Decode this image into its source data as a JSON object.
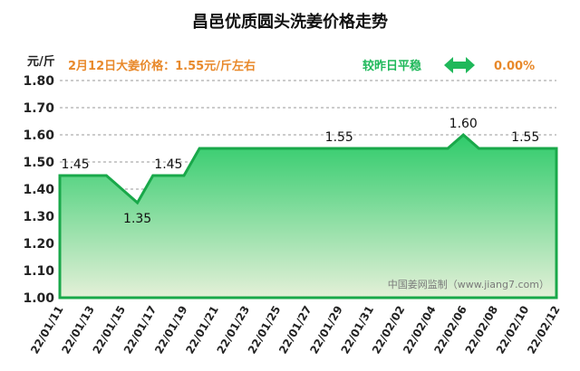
{
  "header": {
    "title": "昌邑优质圆头洗姜价格走势",
    "unit": "元/斤",
    "price_text": "2月12日大姜价格：1.55元/斤左右",
    "compare_text": "较昨日平稳",
    "change": "0.00%",
    "price_color": "#e8892b",
    "arrow_color": "#1fb85a"
  },
  "watermark": "中国姜网监制（www.jiang7.com）",
  "chart_data": {
    "type": "area",
    "x": [
      "2022-01-11",
      "2022-01-12",
      "2022-01-13",
      "2022-01-14",
      "2022-01-15",
      "2022-01-16",
      "2022-01-17",
      "2022-01-18",
      "2022-01-19",
      "2022-01-20",
      "2022-01-21",
      "2022-01-22",
      "2022-01-23",
      "2022-01-24",
      "2022-01-25",
      "2022-01-26",
      "2022-01-27",
      "2022-01-28",
      "2022-01-29",
      "2022-01-30",
      "2022-01-31",
      "2022-02-01",
      "2022-02-02",
      "2022-02-03",
      "2022-02-04",
      "2022-02-05",
      "2022-02-06",
      "2022-02-07",
      "2022-02-08",
      "2022-02-09",
      "2022-02-10",
      "2022-02-11",
      "2022-02-12"
    ],
    "values": [
      1.45,
      1.45,
      1.45,
      1.45,
      1.4,
      1.35,
      1.45,
      1.45,
      1.45,
      1.55,
      1.55,
      1.55,
      1.55,
      1.55,
      1.55,
      1.55,
      1.55,
      1.55,
      1.55,
      1.55,
      1.55,
      1.55,
      1.55,
      1.55,
      1.55,
      1.55,
      1.6,
      1.55,
      1.55,
      1.55,
      1.55,
      1.55,
      1.55
    ],
    "x_tick_labels": [
      "22/01/11",
      "22/01/13",
      "22/01/15",
      "22/01/17",
      "22/01/19",
      "22/01/21",
      "22/01/23",
      "22/01/25",
      "22/01/27",
      "22/01/29",
      "22/01/31",
      "22/02/02",
      "22/02/04",
      "22/02/06",
      "22/02/08",
      "22/02/10",
      "22/02/12"
    ],
    "y_tick_labels": [
      "1.80",
      "1.70",
      "1.60",
      "1.50",
      "1.40",
      "1.30",
      "1.20",
      "1.10",
      "1.00"
    ],
    "ylim": [
      1.0,
      1.8
    ],
    "y_step": 0.1,
    "grid": true,
    "data_labels": [
      {
        "index": 1,
        "text": "1.45"
      },
      {
        "index": 5,
        "text": "1.35"
      },
      {
        "index": 7,
        "text": "1.45"
      },
      {
        "index": 18,
        "text": "1.55"
      },
      {
        "index": 26,
        "text": "1.60"
      },
      {
        "index": 30,
        "text": "1.55"
      }
    ],
    "line_color": "#19a84a",
    "fill_top": "#2ecb6a",
    "fill_bottom": "#e4f0d8"
  }
}
